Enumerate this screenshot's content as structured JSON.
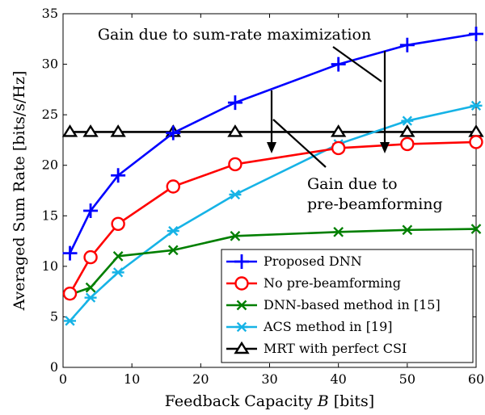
{
  "chart_data": {
    "type": "line",
    "xlabel": "Feedback Capacity",
    "xlabel_var": "B",
    "xlabel_unit": "[bits]",
    "ylabel": "Averaged Sum Rate [bits/s/Hz]",
    "xlim": [
      0,
      60
    ],
    "ylim": [
      0,
      35
    ],
    "xticks": [
      0,
      10,
      20,
      30,
      40,
      50,
      60
    ],
    "yticks": [
      0,
      5,
      10,
      15,
      20,
      25,
      30,
      35
    ],
    "grid": false,
    "legend_position": "bottom-right",
    "series": [
      {
        "name": "Proposed DNN",
        "color": "#0000ff",
        "marker": "plus",
        "x": [
          1,
          4,
          8,
          16,
          25,
          40,
          50,
          60
        ],
        "y": [
          11.3,
          15.5,
          19.0,
          23.2,
          26.2,
          30.0,
          31.9,
          33.0
        ]
      },
      {
        "name": "No pre-beamforming",
        "color": "#ff0000",
        "marker": "circle",
        "x": [
          1,
          4,
          8,
          16,
          25,
          40,
          50,
          60
        ],
        "y": [
          7.3,
          10.9,
          14.2,
          17.9,
          20.1,
          21.7,
          22.1,
          22.3
        ]
      },
      {
        "name": "DNN-based method in [15]",
        "color": "#007f00",
        "marker": "x",
        "x": [
          1,
          4,
          8,
          16,
          25,
          40,
          50,
          60
        ],
        "y": [
          7.2,
          7.9,
          11.0,
          11.6,
          13.0,
          13.4,
          13.6,
          13.7
        ]
      },
      {
        "name": "ACS method in [19]",
        "color": "#16b3e6",
        "marker": "asterisk",
        "x": [
          1,
          4,
          8,
          16,
          25,
          40,
          50,
          60
        ],
        "y": [
          4.6,
          6.9,
          9.4,
          13.5,
          17.1,
          22.1,
          24.4,
          25.9
        ]
      },
      {
        "name": "MRT with perfect CSI",
        "color": "#000000",
        "marker": "triangle",
        "x": [
          1,
          4,
          8,
          16,
          25,
          40,
          50,
          60
        ],
        "y": [
          23.3,
          23.3,
          23.3,
          23.3,
          23.3,
          23.3,
          23.3,
          23.3
        ]
      }
    ],
    "annotations": [
      {
        "id": "sumrate",
        "text_lines": [
          "Gain due to sum-rate maximization"
        ]
      },
      {
        "id": "prebf",
        "text_lines": [
          "Gain due to",
          "pre-beamforming"
        ]
      }
    ]
  }
}
